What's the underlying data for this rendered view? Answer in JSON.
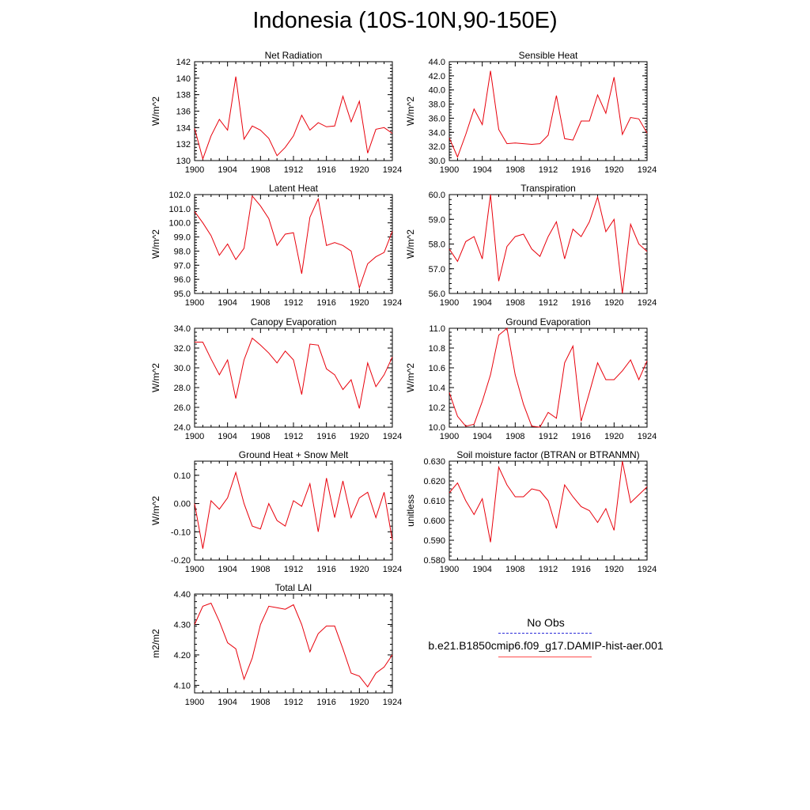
{
  "title": "Indonesia (10S-10N,90-150E)",
  "colors": {
    "model": "#e8000b",
    "obs": "#3030c8",
    "axis": "#000000"
  },
  "legend": {
    "obs_label": "No Obs",
    "model_label": "b.e21.B1850cmip6.f09_g17.DAMIP-hist-aer.001"
  },
  "chart_data": [
    {
      "type": "line",
      "title": "Net Radiation",
      "ylabel": "W/m^2",
      "xlim": [
        1900,
        1924
      ],
      "ylim": [
        130,
        142
      ],
      "xticks": [
        "1900",
        "1904",
        "1908",
        "1912",
        "1916",
        "1920",
        "1924"
      ],
      "yticks": [
        "130",
        "132",
        "134",
        "136",
        "138",
        "140",
        "142"
      ],
      "series": [
        {
          "x": [
            1900,
            1901,
            1902,
            1903,
            1904,
            1905,
            1906,
            1907,
            1908,
            1909,
            1910,
            1911,
            1912,
            1913,
            1914,
            1915,
            1916,
            1917,
            1918,
            1919,
            1920,
            1921,
            1922,
            1923,
            1924
          ],
          "values": [
            133.9,
            130.2,
            133.0,
            135.0,
            133.7,
            140.2,
            132.6,
            134.2,
            133.7,
            132.7,
            130.6,
            131.6,
            133.0,
            135.5,
            133.7,
            134.6,
            134.1,
            134.2,
            137.8,
            134.7,
            137.2,
            130.9,
            133.8,
            134.0,
            133.3
          ]
        }
      ]
    },
    {
      "type": "line",
      "title": "Sensible Heat",
      "ylabel": "W/m^2",
      "xlim": [
        1900,
        1924
      ],
      "ylim": [
        30,
        44
      ],
      "xticks": [
        "1900",
        "1904",
        "1908",
        "1912",
        "1916",
        "1920",
        "1924"
      ],
      "yticks": [
        "30.0",
        "32.0",
        "34.0",
        "36.0",
        "38.0",
        "40.0",
        "42.0",
        "44.0"
      ],
      "series": [
        {
          "x": [
            1900,
            1901,
            1902,
            1903,
            1904,
            1905,
            1906,
            1907,
            1908,
            1909,
            1910,
            1911,
            1912,
            1913,
            1914,
            1915,
            1916,
            1917,
            1918,
            1919,
            1920,
            1921,
            1922,
            1923,
            1924
          ],
          "values": [
            33.2,
            30.5,
            33.7,
            37.3,
            35.1,
            42.7,
            34.4,
            32.4,
            32.5,
            32.4,
            32.3,
            32.4,
            33.6,
            39.2,
            33.1,
            32.9,
            35.6,
            35.6,
            39.3,
            36.7,
            41.8,
            33.7,
            36.1,
            35.9,
            33.9
          ]
        }
      ]
    },
    {
      "type": "line",
      "title": "Latent Heat",
      "ylabel": "W/m^2",
      "xlim": [
        1900,
        1924
      ],
      "ylim": [
        95,
        102
      ],
      "xticks": [
        "1900",
        "1904",
        "1908",
        "1912",
        "1916",
        "1920",
        "1924"
      ],
      "yticks": [
        "95.0",
        "96.0",
        "97.0",
        "98.0",
        "99.0",
        "100.0",
        "101.0",
        "102.0"
      ],
      "series": [
        {
          "x": [
            1900,
            1901,
            1902,
            1903,
            1904,
            1905,
            1906,
            1907,
            1908,
            1909,
            1910,
            1911,
            1912,
            1913,
            1914,
            1915,
            1916,
            1917,
            1918,
            1919,
            1920,
            1921,
            1922,
            1923,
            1924
          ],
          "values": [
            100.8,
            100.0,
            99.1,
            97.7,
            98.5,
            97.4,
            98.2,
            101.9,
            101.2,
            100.3,
            98.4,
            99.2,
            99.3,
            96.4,
            100.4,
            101.7,
            98.4,
            98.6,
            98.4,
            98.0,
            95.4,
            97.1,
            97.6,
            97.9,
            99.4
          ]
        }
      ]
    },
    {
      "type": "line",
      "title": "Transpiration",
      "ylabel": "W/m^2",
      "xlim": [
        1900,
        1924
      ],
      "ylim": [
        56,
        60
      ],
      "xticks": [
        "1900",
        "1904",
        "1908",
        "1912",
        "1916",
        "1920",
        "1924"
      ],
      "yticks": [
        "56.0",
        "57.0",
        "58.0",
        "59.0",
        "60.0"
      ],
      "series": [
        {
          "x": [
            1900,
            1901,
            1902,
            1903,
            1904,
            1905,
            1906,
            1907,
            1908,
            1909,
            1910,
            1911,
            1912,
            1913,
            1914,
            1915,
            1916,
            1917,
            1918,
            1919,
            1920,
            1921,
            1922,
            1923,
            1924
          ],
          "values": [
            57.8,
            57.3,
            58.1,
            58.3,
            57.4,
            60.0,
            56.5,
            57.9,
            58.3,
            58.4,
            57.8,
            57.5,
            58.3,
            58.9,
            57.4,
            58.6,
            58.3,
            58.9,
            59.9,
            58.5,
            59.0,
            56.0,
            58.8,
            58.0,
            57.7
          ]
        }
      ]
    },
    {
      "type": "line",
      "title": "Canopy Evaporation",
      "ylabel": "W/m^2",
      "xlim": [
        1900,
        1924
      ],
      "ylim": [
        24,
        34
      ],
      "xticks": [
        "1900",
        "1904",
        "1908",
        "1912",
        "1916",
        "1920",
        "1924"
      ],
      "yticks": [
        "24.0",
        "26.0",
        "28.0",
        "30.0",
        "32.0",
        "34.0"
      ],
      "series": [
        {
          "x": [
            1900,
            1901,
            1902,
            1903,
            1904,
            1905,
            1906,
            1907,
            1908,
            1909,
            1910,
            1911,
            1912,
            1913,
            1914,
            1915,
            1916,
            1917,
            1918,
            1919,
            1920,
            1921,
            1922,
            1923,
            1924
          ],
          "values": [
            32.6,
            32.6,
            30.9,
            29.3,
            30.8,
            26.9,
            30.8,
            33.0,
            32.3,
            31.5,
            30.5,
            31.7,
            30.8,
            27.3,
            32.4,
            32.3,
            29.9,
            29.3,
            27.8,
            28.8,
            25.9,
            30.5,
            28.1,
            29.3,
            31.1
          ]
        }
      ]
    },
    {
      "type": "line",
      "title": "Ground Evaporation",
      "ylabel": "W/m^2",
      "xlim": [
        1900,
        1924
      ],
      "ylim": [
        10,
        11
      ],
      "xticks": [
        "1900",
        "1904",
        "1908",
        "1912",
        "1916",
        "1920",
        "1924"
      ],
      "yticks": [
        "10.0",
        "10.2",
        "10.4",
        "10.6",
        "10.8",
        "11.0"
      ],
      "series": [
        {
          "x": [
            1900,
            1901,
            1902,
            1903,
            1904,
            1905,
            1906,
            1907,
            1908,
            1909,
            1910,
            1911,
            1912,
            1913,
            1914,
            1915,
            1916,
            1917,
            1918,
            1919,
            1920,
            1921,
            1922,
            1923,
            1924
          ],
          "values": [
            10.35,
            10.11,
            10.01,
            10.03,
            10.26,
            10.53,
            10.93,
            11.0,
            10.53,
            10.23,
            10.01,
            10.0,
            10.15,
            10.09,
            10.65,
            10.82,
            10.06,
            10.35,
            10.65,
            10.48,
            10.48,
            10.57,
            10.68,
            10.48,
            10.67
          ]
        }
      ]
    },
    {
      "type": "line",
      "title": "Ground Heat + Snow Melt",
      "ylabel": "W/m^2",
      "xlim": [
        1900,
        1924
      ],
      "ylim": [
        -0.2,
        0.15
      ],
      "xticks": [
        "1900",
        "1904",
        "1908",
        "1912",
        "1916",
        "1920",
        "1924"
      ],
      "yticks": [
        "-0.20",
        "-0.10",
        "0.00",
        "0.10"
      ],
      "ytick_values": [
        -0.2,
        -0.1,
        0.0,
        0.1
      ],
      "series": [
        {
          "x": [
            1900,
            1901,
            1902,
            1903,
            1904,
            1905,
            1906,
            1907,
            1908,
            1909,
            1910,
            1911,
            1912,
            1913,
            1914,
            1915,
            1916,
            1917,
            1918,
            1919,
            1920,
            1921,
            1922,
            1923,
            1924
          ],
          "values": [
            0.0,
            -0.16,
            0.01,
            -0.02,
            0.02,
            0.11,
            0.0,
            -0.08,
            -0.09,
            0.0,
            -0.06,
            -0.08,
            0.01,
            -0.01,
            0.07,
            -0.1,
            0.09,
            -0.05,
            0.08,
            -0.05,
            0.02,
            0.04,
            -0.05,
            0.04,
            -0.13
          ]
        }
      ]
    },
    {
      "type": "line",
      "title": "Soil moisture factor (BTRAN or BTRANMN)",
      "ylabel": "unitless",
      "xlim": [
        1900,
        1924
      ],
      "ylim": [
        0.58,
        0.63
      ],
      "xticks": [
        "1900",
        "1904",
        "1908",
        "1912",
        "1916",
        "1920",
        "1924"
      ],
      "yticks": [
        "0.580",
        "0.590",
        "0.600",
        "0.610",
        "0.620",
        "0.630"
      ],
      "series": [
        {
          "x": [
            1900,
            1901,
            1902,
            1903,
            1904,
            1905,
            1906,
            1907,
            1908,
            1909,
            1910,
            1911,
            1912,
            1913,
            1914,
            1915,
            1916,
            1917,
            1918,
            1919,
            1920,
            1921,
            1922,
            1923,
            1924
          ],
          "values": [
            0.614,
            0.619,
            0.61,
            0.603,
            0.611,
            0.589,
            0.627,
            0.618,
            0.612,
            0.612,
            0.616,
            0.615,
            0.61,
            0.596,
            0.618,
            0.612,
            0.607,
            0.605,
            0.599,
            0.606,
            0.595,
            0.63,
            0.609,
            0.613,
            0.617
          ]
        }
      ]
    },
    {
      "type": "line",
      "title": "Total LAI",
      "ylabel": "m2/m2",
      "xlim": [
        1900,
        1924
      ],
      "ylim": [
        4.075,
        4.4
      ],
      "xticks": [
        "1900",
        "1904",
        "1908",
        "1912",
        "1916",
        "1920",
        "1924"
      ],
      "yticks": [
        "4.10",
        "4.20",
        "4.30",
        "4.40"
      ],
      "ytick_values": [
        4.1,
        4.2,
        4.3,
        4.4
      ],
      "series": [
        {
          "x": [
            1900,
            1901,
            1902,
            1903,
            1904,
            1905,
            1906,
            1907,
            1908,
            1909,
            1910,
            1911,
            1912,
            1913,
            1914,
            1915,
            1916,
            1917,
            1918,
            1919,
            1920,
            1921,
            1922,
            1923,
            1924
          ],
          "values": [
            4.3,
            4.36,
            4.37,
            4.31,
            4.24,
            4.22,
            4.12,
            4.19,
            4.3,
            4.36,
            4.355,
            4.35,
            4.365,
            4.3,
            4.21,
            4.27,
            4.295,
            4.295,
            4.22,
            4.14,
            4.13,
            4.095,
            4.14,
            4.16,
            4.2
          ]
        }
      ]
    }
  ]
}
